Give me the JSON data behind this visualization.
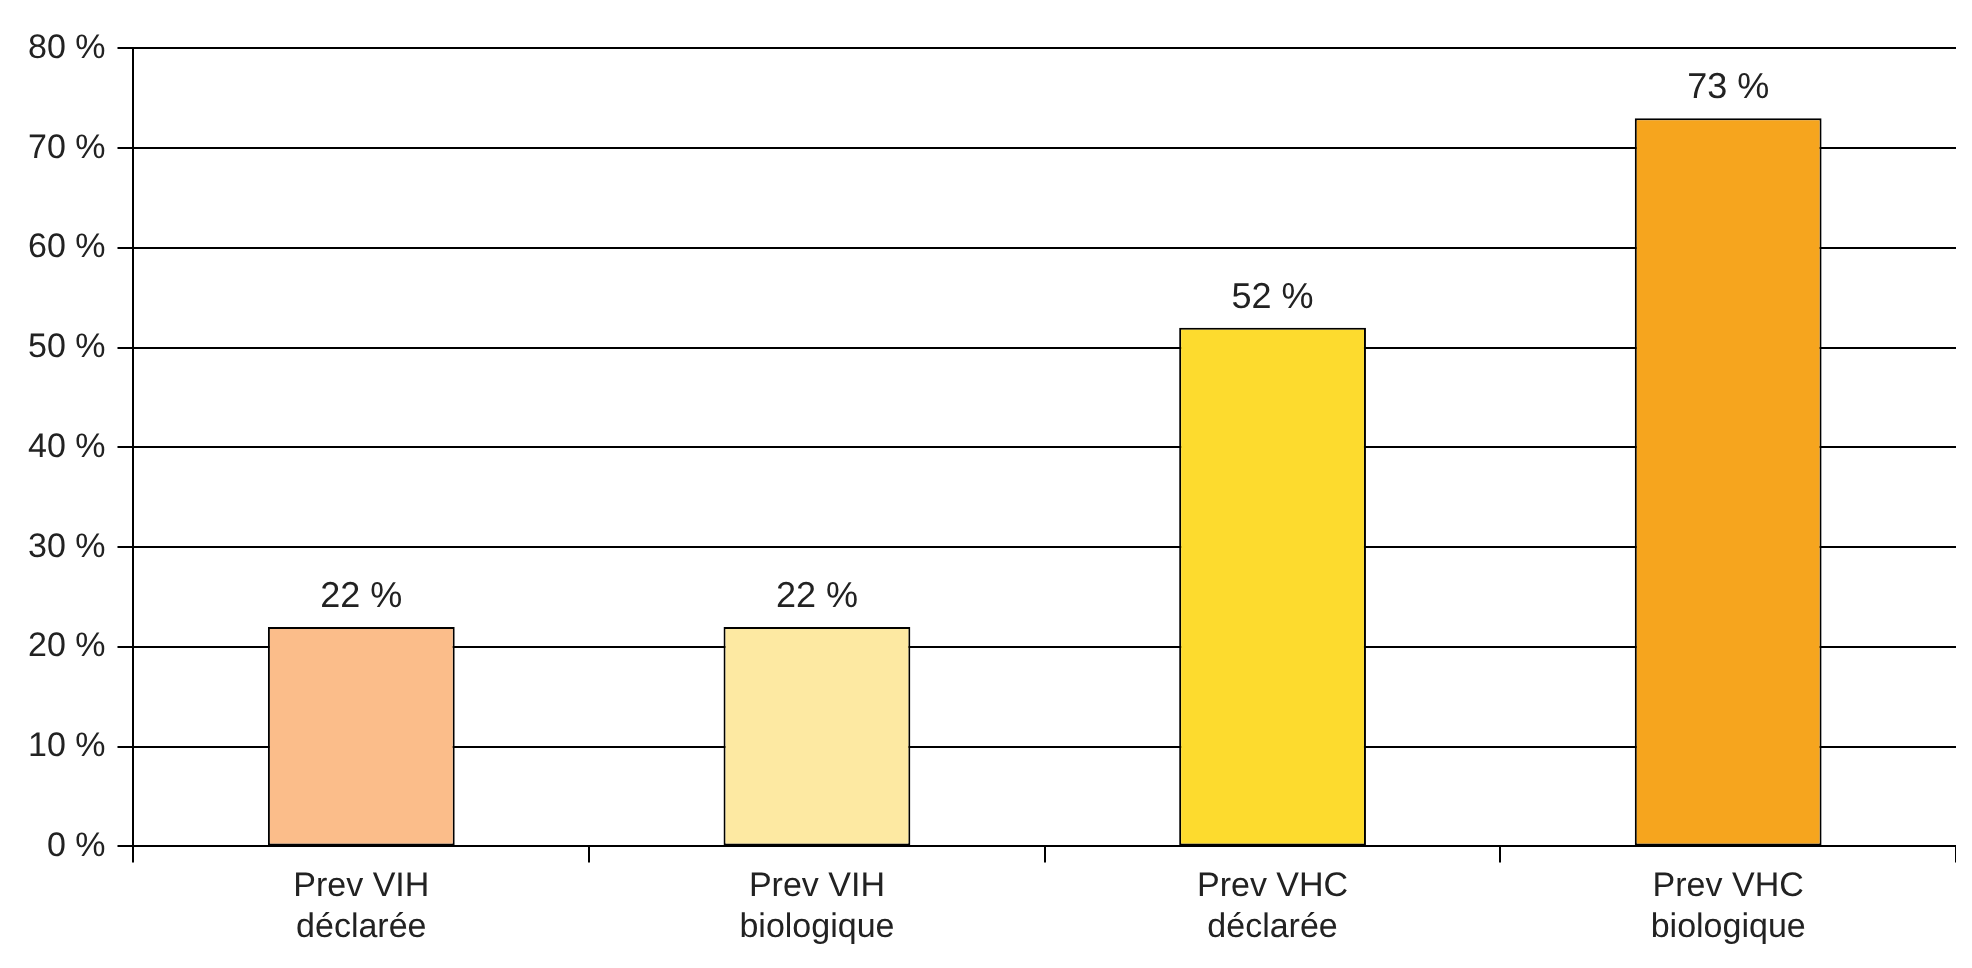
{
  "chart_data": {
    "type": "bar",
    "categories": [
      "Prev VIH déclarée",
      "Prev VIH biologique",
      "Prev VHC déclarée",
      "Prev VHC biologique"
    ],
    "values": [
      22,
      22,
      52,
      73
    ],
    "colors": [
      "#fbbd8a",
      "#fde9a2",
      "#fddb2e",
      "#f6a51e"
    ],
    "value_labels": [
      "22 %",
      "22 %",
      "52 %",
      "73 %"
    ],
    "ylim": [
      0,
      80
    ],
    "yticks": [
      {
        "value": 0,
        "label": "0 %"
      },
      {
        "value": 10,
        "label": "10 %"
      },
      {
        "value": 20,
        "label": "20 %"
      },
      {
        "value": 30,
        "label": "30 %"
      },
      {
        "value": 40,
        "label": "40 %"
      },
      {
        "value": 50,
        "label": "50 %"
      },
      {
        "value": 60,
        "label": "60 %"
      },
      {
        "value": 70,
        "label": "70 %"
      },
      {
        "value": 80,
        "label": "80 %"
      }
    ],
    "grid": "y",
    "legend": false
  }
}
